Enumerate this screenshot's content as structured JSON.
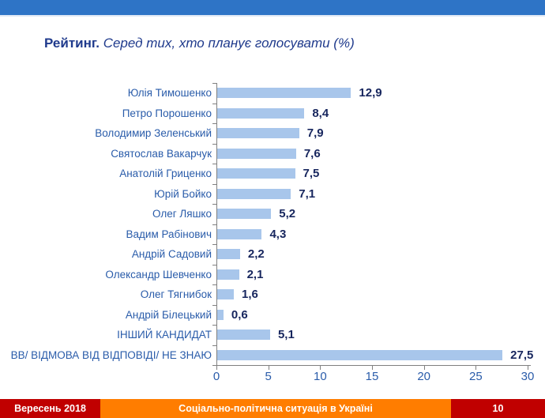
{
  "title": {
    "prefix": "Рейтинг.",
    "subtitle": " Серед тих, хто планує голосувати (%)"
  },
  "chart_data": {
    "type": "bar",
    "orientation": "horizontal",
    "title": "Рейтинг. Серед тих, хто планує голосувати (%)",
    "categories": [
      "Юлія Тимошенко",
      "Петро Порошенко",
      "Володимир Зеленський",
      "Святослав Вакарчук",
      "Анатолій Гриценко",
      "Юрій Бойко",
      "Олег Ляшко",
      "Вадим Рабінович",
      "Андрій Садовий",
      "Олександр Шевченко",
      "Олег Тягнибок",
      "Андрій Білецький",
      "ІНШИЙ КАНДИДАТ",
      "ВВ/ ВІДМОВА ВІД ВІДПОВІДІ/ НЕ ЗНАЮ"
    ],
    "values": [
      12.9,
      8.4,
      7.9,
      7.6,
      7.5,
      7.1,
      5.2,
      4.3,
      2.2,
      2.1,
      1.6,
      0.6,
      5.1,
      27.5
    ],
    "value_labels": [
      "12,9",
      "8,4",
      "7,9",
      "7,6",
      "7,5",
      "7,1",
      "5,2",
      "4,3",
      "2,2",
      "2,1",
      "1,6",
      "0,6",
      "5,1",
      "27,5"
    ],
    "xlim": [
      0,
      30
    ],
    "x_ticks": [
      0,
      5,
      10,
      15,
      20,
      25,
      30
    ],
    "grid": false,
    "legend": false,
    "bar_color": "#A8C6EB",
    "category_label_color": "#2A5CAA",
    "value_label_color": "#17265E"
  },
  "footer": {
    "left": "Вересень 2018",
    "center": "Соціально-політична ситуація в Україні",
    "page": "10"
  },
  "colors": {
    "top_band": "#2E74C6",
    "footer_red": "#C00000",
    "footer_orange": "#FF7D00",
    "title_color": "#1F3A8C"
  }
}
